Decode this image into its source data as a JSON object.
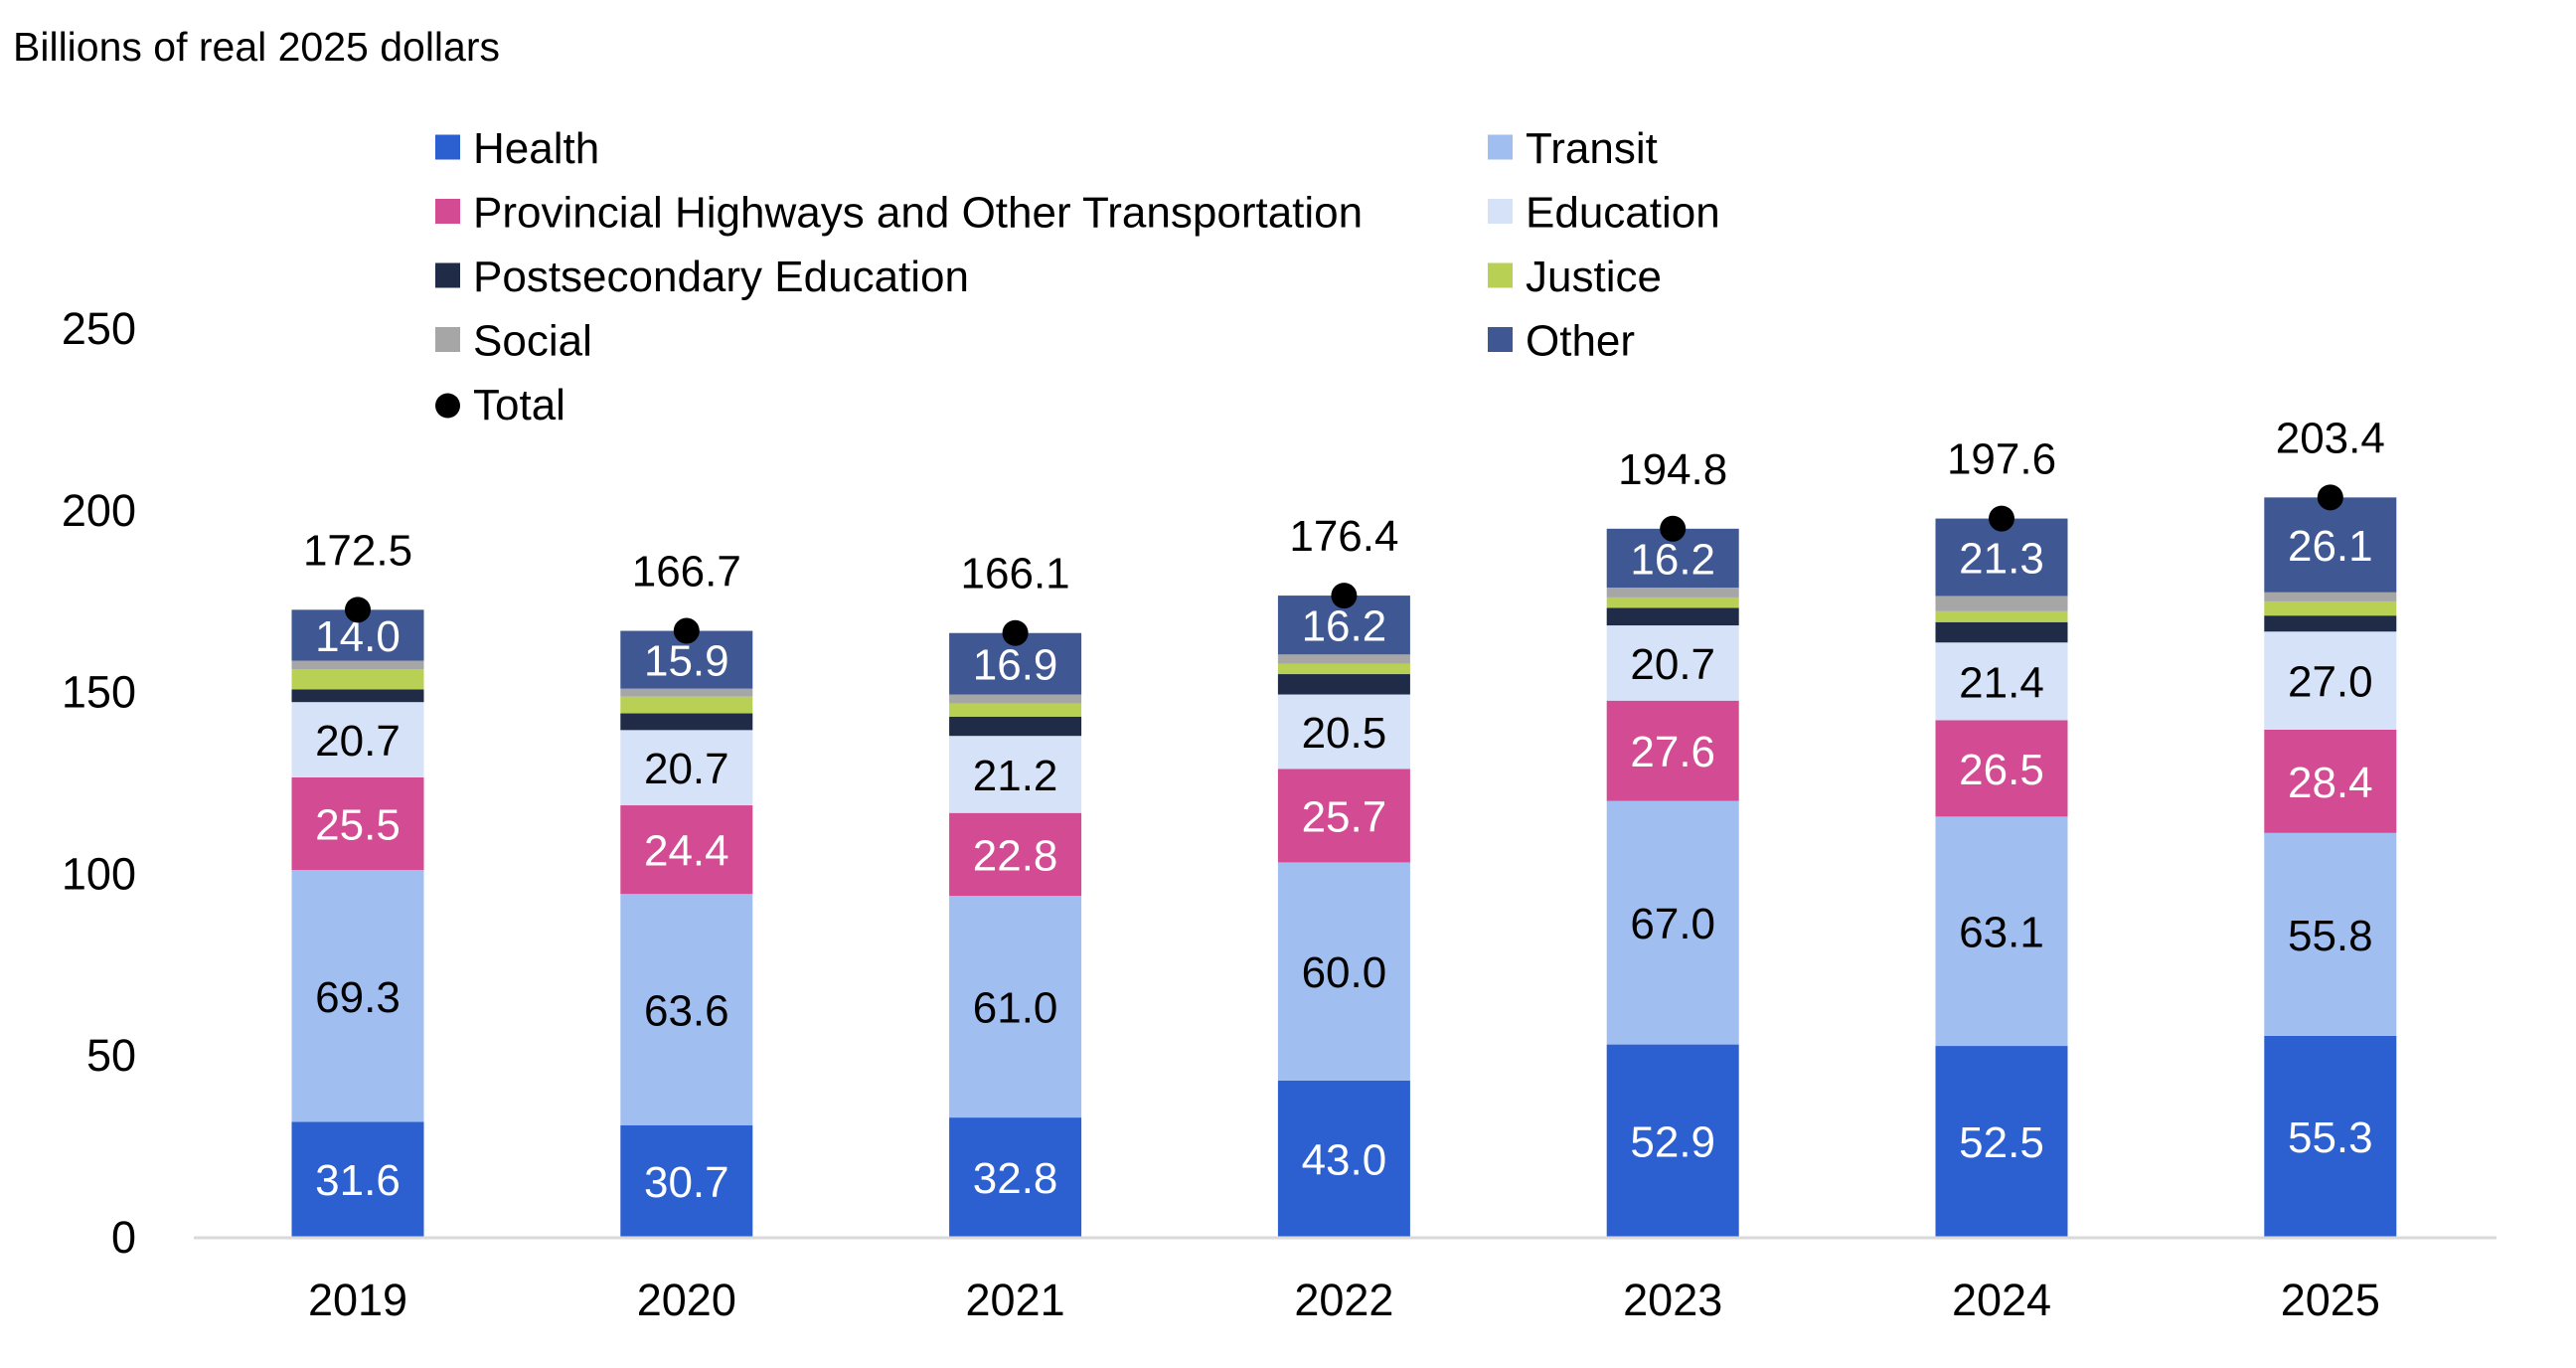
{
  "chart_data": {
    "type": "bar",
    "stacked": true,
    "title": "",
    "ylabel": "Billions of real 2025 dollars",
    "xlabel": "",
    "ylim": [
      0,
      250
    ],
    "yticks": [
      "0",
      "50",
      "100",
      "150",
      "200",
      "250"
    ],
    "ytick_values": [
      0,
      50,
      100,
      150,
      200,
      250
    ],
    "grid": false,
    "legend_position": "top",
    "categories": [
      "2019",
      "2020",
      "2021",
      "2022",
      "2023",
      "2024",
      "2025"
    ],
    "series": [
      {
        "name": "Health",
        "color": "#2C5FD0",
        "label_color": "#ffffff",
        "labeled": true,
        "values": [
          31.6,
          30.7,
          32.8,
          43.0,
          52.9,
          52.5,
          55.3
        ]
      },
      {
        "name": "Transit",
        "color": "#A0BEF0",
        "label_color": "#000000",
        "labeled": true,
        "values": [
          69.3,
          63.6,
          61.0,
          60.0,
          67.0,
          63.1,
          55.8
        ]
      },
      {
        "name": "Provincial Highways and Other Transportation",
        "color": "#D24B93",
        "label_color": "#ffffff",
        "labeled": true,
        "values": [
          25.5,
          24.4,
          22.8,
          25.7,
          27.6,
          26.5,
          28.4
        ]
      },
      {
        "name": "Education",
        "color": "#D6E2F8",
        "label_color": "#000000",
        "labeled": true,
        "values": [
          20.7,
          20.7,
          21.2,
          20.5,
          20.7,
          21.4,
          27.0
        ]
      },
      {
        "name": "Postsecondary Education",
        "color": "#1F2B47",
        "label_color": "#ffffff",
        "labeled": false,
        "values": [
          3.5,
          4.6,
          5.3,
          5.6,
          4.8,
          5.6,
          4.4
        ]
      },
      {
        "name": "Justice",
        "color": "#B8D054",
        "label_color": "#000000",
        "labeled": false,
        "values": [
          5.5,
          4.6,
          3.6,
          2.8,
          2.9,
          3.0,
          3.9
        ]
      },
      {
        "name": "Social",
        "color": "#A6A6A6",
        "label_color": "#000000",
        "labeled": false,
        "values": [
          2.4,
          2.2,
          2.5,
          2.6,
          2.7,
          4.2,
          2.5
        ]
      },
      {
        "name": "Other",
        "color": "#3F5893",
        "label_color": "#ffffff",
        "labeled": true,
        "values": [
          14.0,
          15.9,
          16.9,
          16.2,
          16.2,
          21.3,
          26.1
        ]
      }
    ],
    "total": {
      "name": "Total",
      "marker": "circle",
      "color": "#000000",
      "values": [
        172.5,
        166.7,
        166.1,
        176.4,
        194.8,
        197.6,
        203.4
      ]
    },
    "legend": {
      "left_column": [
        "Health",
        "Provincial Highways and Other Transportation",
        "Postsecondary Education",
        "Social",
        "Total"
      ],
      "right_column": [
        "Transit",
        "Education",
        "Justice",
        "Other"
      ]
    }
  }
}
